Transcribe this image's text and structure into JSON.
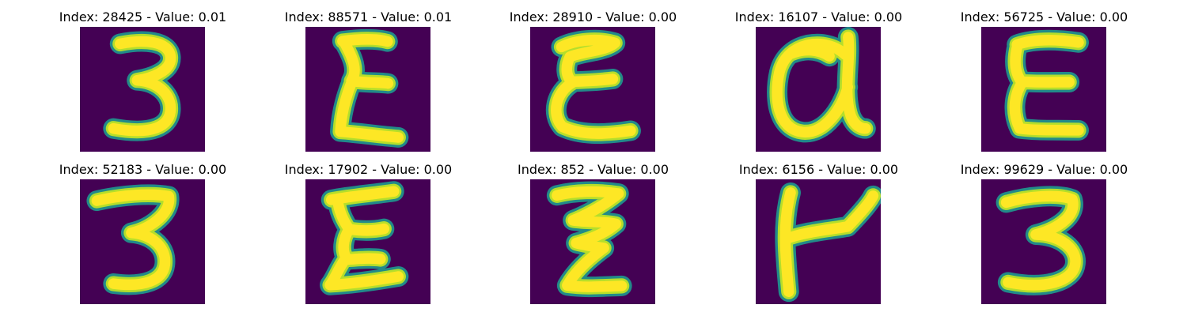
{
  "background_color": "#440154",
  "stroke_colors": {
    "core": "#fde725",
    "mid": "#b5de2b",
    "edge": "#21918c"
  },
  "panels": [
    {
      "title": "Index: 28425 - Value: 0.01",
      "glyph": "3"
    },
    {
      "title": "Index: 88571 - Value: 0.01",
      "glyph": "Σ"
    },
    {
      "title": "Index: 28910 - Value: 0.00",
      "glyph": "ε"
    },
    {
      "title": "Index: 16107 - Value: 0.00",
      "glyph": "a"
    },
    {
      "title": "Index: 56725 - Value: 0.00",
      "glyph": "E"
    },
    {
      "title": "Index: 52183 - Value: 0.00",
      "glyph": "3"
    },
    {
      "title": "Index: 17902 - Value: 0.00",
      "glyph": "ξ"
    },
    {
      "title": "Index: 852 - Value: 0.00",
      "glyph": "ζ"
    },
    {
      "title": "Index: 6156 - Value: 0.00",
      "glyph": "t"
    },
    {
      "title": "Index: 99629 - Value: 0.00",
      "glyph": "3"
    }
  ]
}
